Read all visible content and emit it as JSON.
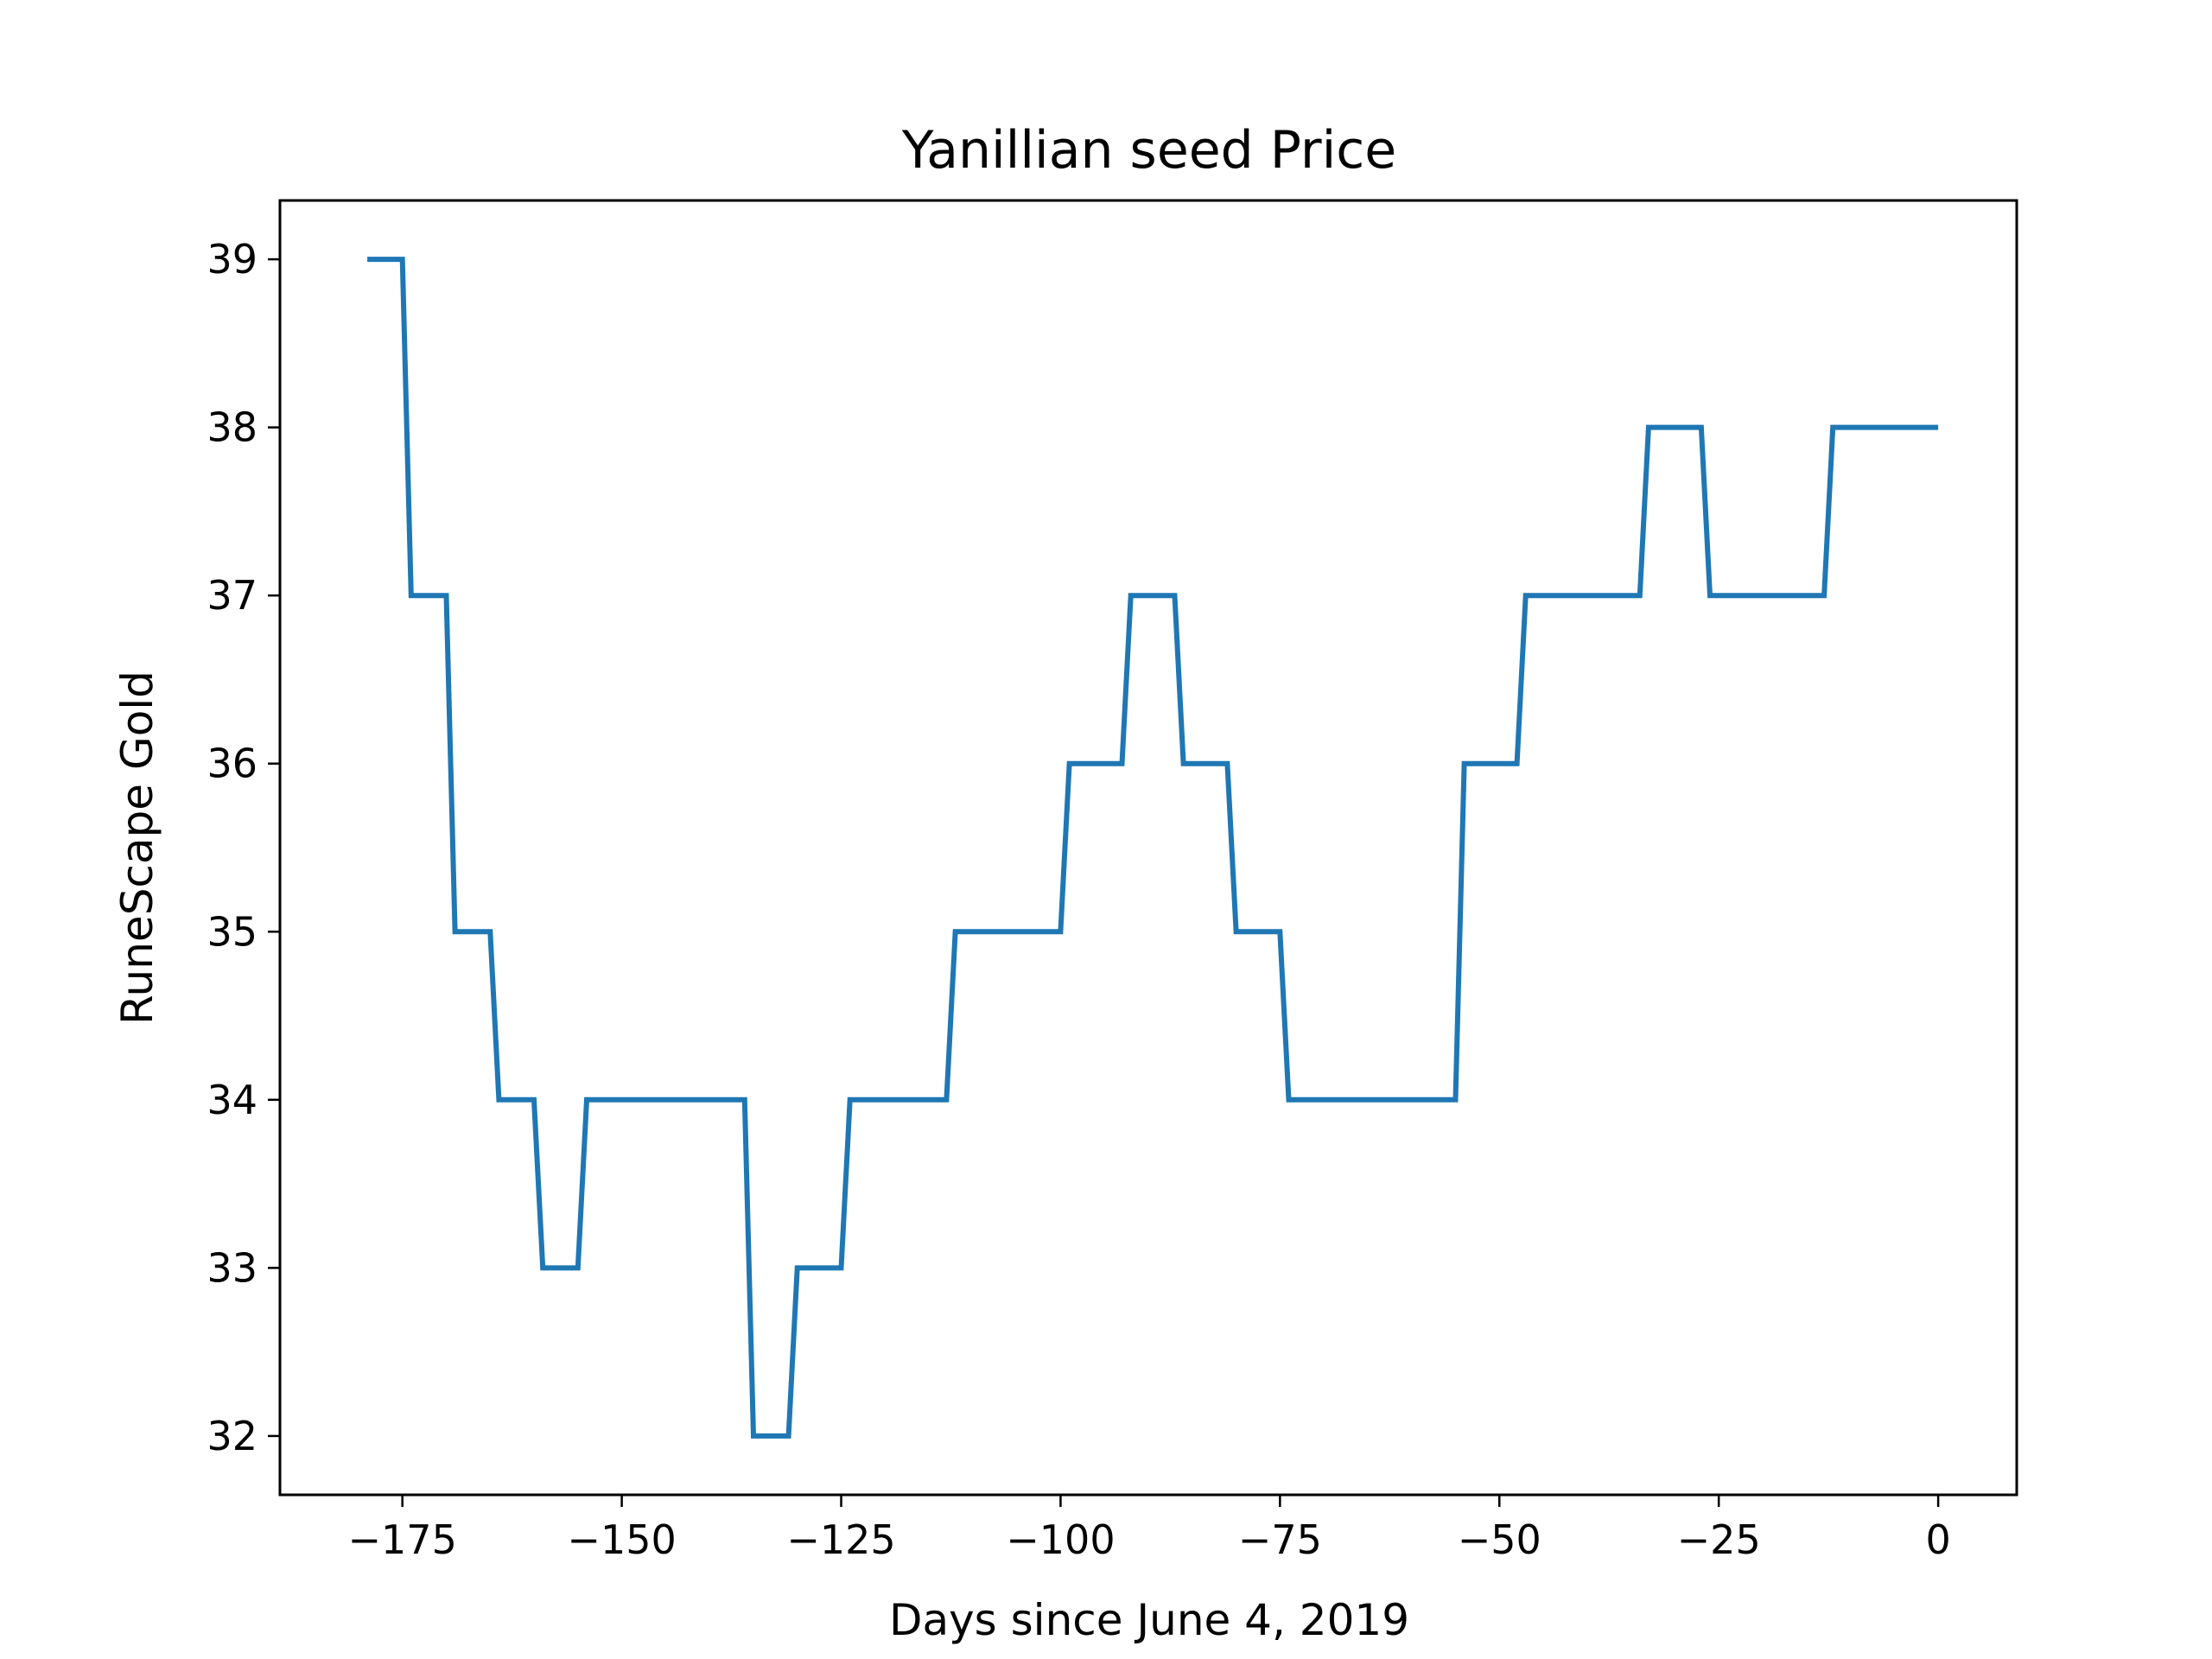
{
  "chart_data": {
    "type": "line",
    "title": "Yanillian seed Price",
    "xlabel": "Days since June 4, 2019",
    "ylabel": "RuneScape Gold",
    "xlim": [
      -188.95,
      8.95
    ],
    "ylim": [
      31.65,
      39.35
    ],
    "xticks": [
      -175,
      -150,
      -125,
      -100,
      -75,
      -50,
      -25,
      0
    ],
    "xtick_labels": [
      "−175",
      "−150",
      "−125",
      "−100",
      "−75",
      "−50",
      "−25",
      "0"
    ],
    "yticks": [
      32,
      33,
      34,
      35,
      36,
      37,
      38,
      39
    ],
    "ytick_labels": [
      "32",
      "33",
      "34",
      "35",
      "36",
      "37",
      "38",
      "39"
    ],
    "grid": false,
    "series_color": "#1f77b4",
    "series": [
      {
        "points": [
          [
            -179,
            39
          ],
          [
            -175,
            39
          ],
          [
            -174,
            37
          ],
          [
            -170,
            37
          ],
          [
            -169,
            35
          ],
          [
            -165,
            35
          ],
          [
            -164,
            34
          ],
          [
            -160,
            34
          ],
          [
            -159,
            33
          ],
          [
            -155,
            33
          ],
          [
            -154,
            34
          ],
          [
            -136,
            34
          ],
          [
            -135,
            32
          ],
          [
            -131,
            32
          ],
          [
            -130,
            33
          ],
          [
            -125,
            33
          ],
          [
            -124,
            34
          ],
          [
            -113,
            34
          ],
          [
            -112,
            35
          ],
          [
            -100,
            35
          ],
          [
            -99,
            36
          ],
          [
            -93,
            36
          ],
          [
            -92,
            37
          ],
          [
            -87,
            37
          ],
          [
            -86,
            36
          ],
          [
            -81,
            36
          ],
          [
            -80,
            35
          ],
          [
            -75,
            35
          ],
          [
            -74,
            34
          ],
          [
            -55,
            34
          ],
          [
            -54,
            36
          ],
          [
            -48,
            36
          ],
          [
            -47,
            37
          ],
          [
            -34,
            37
          ],
          [
            -33,
            38
          ],
          [
            -27,
            38
          ],
          [
            -26,
            37
          ],
          [
            -13,
            37
          ],
          [
            -12,
            38
          ],
          [
            0,
            38
          ]
        ]
      }
    ]
  }
}
